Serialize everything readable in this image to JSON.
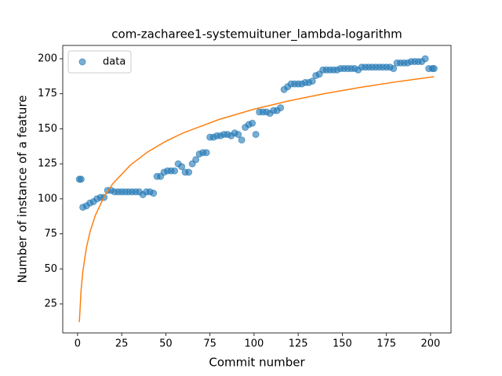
{
  "chart_data": {
    "type": "scatter",
    "title": "com-zacharee1-systemuituner_lambda-logarithm",
    "xlabel": "Commit number",
    "ylabel": "Number of instance of a feature",
    "xlim": [
      -8.4,
      211.6
    ],
    "xticks": [
      0,
      25,
      50,
      75,
      100,
      125,
      150,
      175,
      200
    ],
    "ylim": [
      4.3,
      209.5
    ],
    "yticks": [
      25,
      50,
      75,
      100,
      125,
      150,
      175,
      200
    ],
    "legend": "upper left",
    "series": [
      {
        "name": "data",
        "color": "#1f77b4",
        "mode": "markers",
        "x": [
          1,
          2,
          3,
          5,
          7,
          9,
          11,
          13,
          15,
          17,
          19,
          21,
          23,
          25,
          27,
          29,
          31,
          33,
          35,
          37,
          39,
          41,
          43,
          45,
          47,
          49,
          51,
          53,
          55,
          57,
          59,
          61,
          63,
          65,
          67,
          69,
          71,
          73,
          75,
          77,
          79,
          81,
          83,
          85,
          87,
          89,
          91,
          93,
          95,
          97,
          99,
          101,
          103,
          105,
          107,
          109,
          111,
          113,
          115,
          117,
          119,
          121,
          123,
          125,
          127,
          129,
          131,
          133,
          135,
          137,
          139,
          141,
          143,
          145,
          147,
          149,
          151,
          153,
          155,
          157,
          159,
          161,
          163,
          165,
          167,
          169,
          171,
          173,
          175,
          177,
          179,
          181,
          183,
          185,
          187,
          189,
          191,
          193,
          195,
          197,
          199,
          201,
          202
        ],
        "values": [
          114,
          114,
          94,
          95,
          97,
          98,
          100,
          101,
          101,
          106,
          106,
          105,
          105,
          105,
          105,
          105,
          105,
          105,
          105,
          103,
          105,
          105,
          104,
          116,
          116,
          119,
          120,
          120,
          120,
          125,
          123,
          119,
          119,
          125,
          128,
          132,
          133,
          133,
          144,
          144,
          145,
          145,
          146,
          146,
          145,
          147,
          146,
          142,
          151,
          153,
          154,
          146,
          162,
          162,
          162,
          161,
          163,
          163,
          165,
          178,
          180,
          182,
          182,
          182,
          182,
          183,
          183,
          184,
          188,
          189,
          192,
          192,
          192,
          192,
          192,
          193,
          193,
          193,
          193,
          193,
          192,
          194,
          194,
          194,
          194,
          194,
          194,
          194,
          194,
          194,
          193,
          197,
          197,
          197,
          197,
          198,
          198,
          198,
          198,
          200,
          193,
          193,
          193
        ]
      },
      {
        "color": "#ff7f0e",
        "mode": "line",
        "x": [
          1,
          2,
          3,
          5,
          7,
          10,
          15,
          20,
          30,
          40,
          50,
          60,
          80,
          100,
          120,
          140,
          160,
          180,
          202
        ],
        "values": [
          12,
          34.9,
          48.3,
          65.1,
          76.2,
          88.0,
          101.4,
          110.9,
          124.2,
          133.7,
          141.1,
          147.1,
          156.6,
          164.0,
          170.0,
          175.1,
          179.5,
          183.4,
          187.2
        ]
      }
    ]
  }
}
